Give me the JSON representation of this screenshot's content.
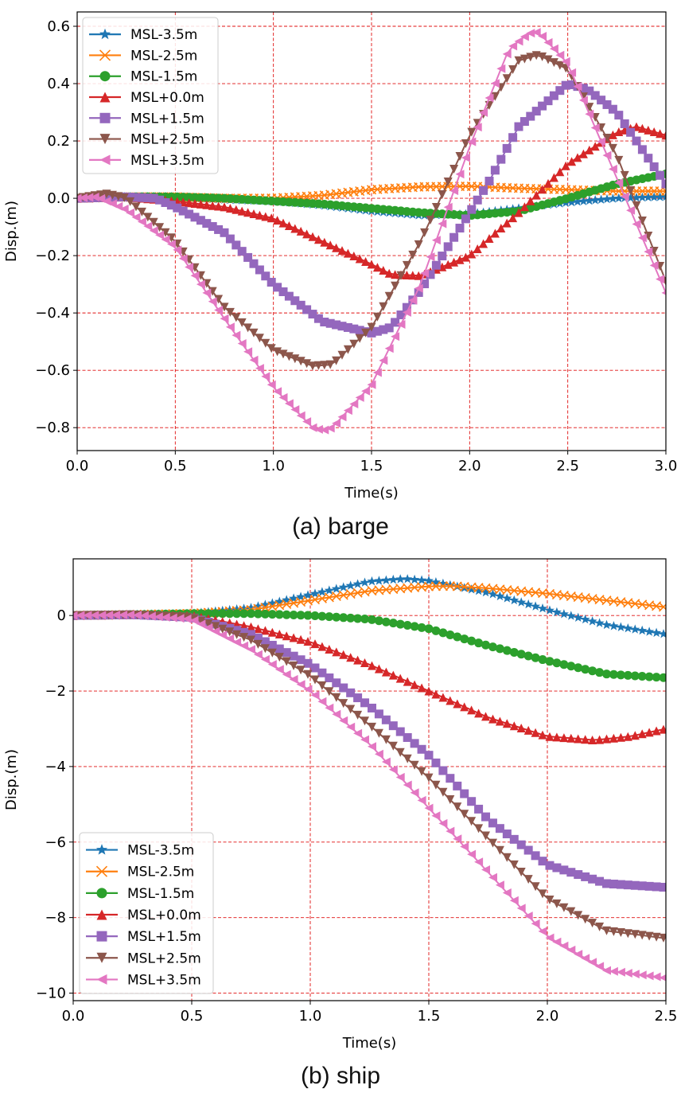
{
  "charts": [
    {
      "caption": "(a) barge",
      "chart_data": {
        "type": "line",
        "xlabel": "Time(s)",
        "ylabel": "Disp.(m)",
        "xlim": [
          0.0,
          3.0
        ],
        "ylim": [
          -0.88,
          0.65
        ],
        "xticks": [
          "0.0",
          "0.5",
          "1.0",
          "1.5",
          "2.0",
          "2.5",
          "3.0"
        ],
        "yticks": [
          "−0.8",
          "−0.6",
          "−0.4",
          "−0.2",
          "0.0",
          "0.2",
          "0.4",
          "0.6"
        ],
        "xtick_values": [
          0.0,
          0.5,
          1.0,
          1.5,
          2.0,
          2.5,
          3.0
        ],
        "ytick_values": [
          -0.8,
          -0.6,
          -0.4,
          -0.2,
          0.0,
          0.2,
          0.4,
          0.6
        ],
        "grid": true,
        "legend_position": "top-left",
        "series": [
          {
            "name": "MSL-3.5m",
            "color": "#1f77b4",
            "marker": "star",
            "x": [
              0.0,
              0.25,
              0.5,
              0.75,
              1.0,
              1.25,
              1.5,
              1.75,
              2.0,
              2.25,
              2.5,
              2.75,
              3.0
            ],
            "y": [
              0.0,
              0.005,
              0.005,
              -0.005,
              -0.01,
              -0.025,
              -0.045,
              -0.06,
              -0.055,
              -0.035,
              -0.015,
              0.0,
              0.005
            ]
          },
          {
            "name": "MSL-2.5m",
            "color": "#ff7f0e",
            "marker": "x",
            "x": [
              0.0,
              0.25,
              0.5,
              0.75,
              1.0,
              1.25,
              1.5,
              1.75,
              2.0,
              2.25,
              2.5,
              2.75,
              3.0
            ],
            "y": [
              0.0,
              0.005,
              0.005,
              0.0,
              0.0,
              0.01,
              0.03,
              0.04,
              0.042,
              0.035,
              0.03,
              0.025,
              0.025
            ]
          },
          {
            "name": "MSL-1.5m",
            "color": "#2ca02c",
            "marker": "circle",
            "x": [
              0.0,
              0.25,
              0.5,
              0.75,
              1.0,
              1.25,
              1.5,
              1.75,
              2.0,
              2.25,
              2.5,
              2.75,
              3.0
            ],
            "y": [
              0.0,
              0.005,
              0.005,
              0.0,
              -0.01,
              -0.02,
              -0.035,
              -0.05,
              -0.06,
              -0.045,
              0.0,
              0.05,
              0.085
            ]
          },
          {
            "name": "MSL+0.0m",
            "color": "#d62728",
            "marker": "triangle-up",
            "x": [
              0.0,
              0.25,
              0.5,
              0.75,
              1.0,
              1.25,
              1.5,
              1.6,
              1.75,
              2.0,
              2.25,
              2.5,
              2.75,
              2.85,
              3.0
            ],
            "y": [
              0.0,
              0.005,
              -0.01,
              -0.03,
              -0.07,
              -0.15,
              -0.23,
              -0.265,
              -0.27,
              -0.2,
              -0.05,
              0.12,
              0.23,
              0.25,
              0.22
            ]
          },
          {
            "name": "MSL+1.5m",
            "color": "#9467bd",
            "marker": "square",
            "x": [
              0.0,
              0.25,
              0.4,
              0.5,
              0.75,
              1.0,
              1.25,
              1.5,
              1.6,
              1.75,
              2.0,
              2.1,
              2.25,
              2.5,
              2.6,
              2.75,
              2.9,
              3.0
            ],
            "y": [
              0.0,
              0.005,
              0.0,
              -0.03,
              -0.12,
              -0.3,
              -0.43,
              -0.47,
              -0.45,
              -0.32,
              -0.05,
              0.06,
              0.25,
              0.4,
              0.38,
              0.3,
              0.15,
              0.05
            ]
          },
          {
            "name": "MSL+2.5m",
            "color": "#8c564b",
            "marker": "triangle-down",
            "x": [
              0.0,
              0.15,
              0.25,
              0.5,
              0.75,
              1.0,
              1.2,
              1.3,
              1.5,
              1.75,
              2.0,
              2.25,
              2.35,
              2.5,
              2.75,
              3.0
            ],
            "y": [
              0.0,
              0.015,
              0.0,
              -0.15,
              -0.38,
              -0.53,
              -0.585,
              -0.58,
              -0.45,
              -0.15,
              0.22,
              0.48,
              0.5,
              0.45,
              0.15,
              -0.29
            ]
          },
          {
            "name": "MSL+3.5m",
            "color": "#e377c2",
            "marker": "triangle-left",
            "x": [
              0.0,
              0.1,
              0.25,
              0.5,
              0.75,
              1.0,
              1.2,
              1.25,
              1.3,
              1.5,
              1.75,
              2.0,
              2.2,
              2.3,
              2.35,
              2.5,
              2.75,
              3.0
            ],
            "y": [
              0.0,
              0.005,
              -0.04,
              -0.17,
              -0.42,
              -0.66,
              -0.8,
              -0.81,
              -0.8,
              -0.65,
              -0.3,
              0.18,
              0.52,
              0.575,
              0.58,
              0.47,
              0.07,
              -0.33
            ]
          }
        ]
      }
    },
    {
      "caption": "(b) ship",
      "chart_data": {
        "type": "line",
        "xlabel": "Time(s)",
        "ylabel": "Disp.(m)",
        "xlim": [
          0.0,
          2.5
        ],
        "ylim": [
          -10.2,
          1.5
        ],
        "xticks": [
          "0.0",
          "0.5",
          "1.0",
          "1.5",
          "2.0",
          "2.5"
        ],
        "yticks": [
          "−10",
          "−8",
          "−6",
          "−4",
          "−2",
          "0"
        ],
        "xtick_values": [
          0.0,
          0.5,
          1.0,
          1.5,
          2.0,
          2.5
        ],
        "ytick_values": [
          -10,
          -8,
          -6,
          -4,
          -2,
          0
        ],
        "grid": true,
        "legend_position": "lower-left",
        "series": [
          {
            "name": "MSL-3.5m",
            "color": "#1f77b4",
            "marker": "star",
            "x": [
              0.0,
              0.25,
              0.5,
              0.75,
              1.0,
              1.25,
              1.4,
              1.5,
              1.75,
              2.0,
              2.25,
              2.5
            ],
            "y": [
              0.0,
              0.02,
              0.05,
              0.2,
              0.55,
              0.9,
              0.97,
              0.92,
              0.6,
              0.15,
              -0.25,
              -0.5
            ]
          },
          {
            "name": "MSL-2.5m",
            "color": "#ff7f0e",
            "marker": "x",
            "x": [
              0.0,
              0.25,
              0.5,
              0.75,
              1.0,
              1.25,
              1.5,
              1.6,
              1.75,
              2.0,
              2.25,
              2.5
            ],
            "y": [
              0.0,
              0.02,
              0.05,
              0.15,
              0.4,
              0.65,
              0.77,
              0.78,
              0.72,
              0.58,
              0.4,
              0.22
            ]
          },
          {
            "name": "MSL-1.5m",
            "color": "#2ca02c",
            "marker": "circle",
            "x": [
              0.0,
              0.25,
              0.5,
              0.75,
              1.0,
              1.25,
              1.5,
              1.75,
              2.0,
              2.25,
              2.5
            ],
            "y": [
              0.0,
              0.02,
              0.05,
              0.05,
              0.0,
              -0.1,
              -0.35,
              -0.8,
              -1.2,
              -1.55,
              -1.65
            ]
          },
          {
            "name": "MSL+0.0m",
            "color": "#d62728",
            "marker": "triangle-up",
            "x": [
              0.0,
              0.25,
              0.5,
              0.75,
              1.0,
              1.25,
              1.5,
              1.75,
              2.0,
              2.2,
              2.35,
              2.5
            ],
            "y": [
              0.0,
              0.02,
              0.0,
              -0.3,
              -0.7,
              -1.3,
              -2.0,
              -2.7,
              -3.2,
              -3.3,
              -3.2,
              -3.0
            ]
          },
          {
            "name": "MSL+1.5m",
            "color": "#9467bd",
            "marker": "square",
            "x": [
              0.0,
              0.25,
              0.5,
              0.75,
              1.0,
              1.25,
              1.5,
              1.75,
              2.0,
              2.25,
              2.5
            ],
            "y": [
              0.0,
              0.02,
              -0.05,
              -0.5,
              -1.3,
              -2.4,
              -3.7,
              -5.4,
              -6.6,
              -7.1,
              -7.2
            ]
          },
          {
            "name": "MSL+2.5m",
            "color": "#8c564b",
            "marker": "triangle-down",
            "x": [
              0.0,
              0.25,
              0.5,
              0.75,
              1.0,
              1.25,
              1.5,
              1.75,
              2.0,
              2.25,
              2.5
            ],
            "y": [
              0.0,
              0.02,
              -0.05,
              -0.65,
              -1.6,
              -2.9,
              -4.3,
              -5.9,
              -7.5,
              -8.35,
              -8.55
            ]
          },
          {
            "name": "MSL+3.5m",
            "color": "#e377c2",
            "marker": "triangle-left",
            "x": [
              0.0,
              0.25,
              0.5,
              0.75,
              1.0,
              1.25,
              1.5,
              1.75,
              2.0,
              2.25,
              2.5
            ],
            "y": [
              0.0,
              0.02,
              -0.1,
              -0.9,
              -2.0,
              -3.4,
              -5.1,
              -6.8,
              -8.5,
              -9.4,
              -9.6
            ]
          }
        ]
      }
    }
  ]
}
